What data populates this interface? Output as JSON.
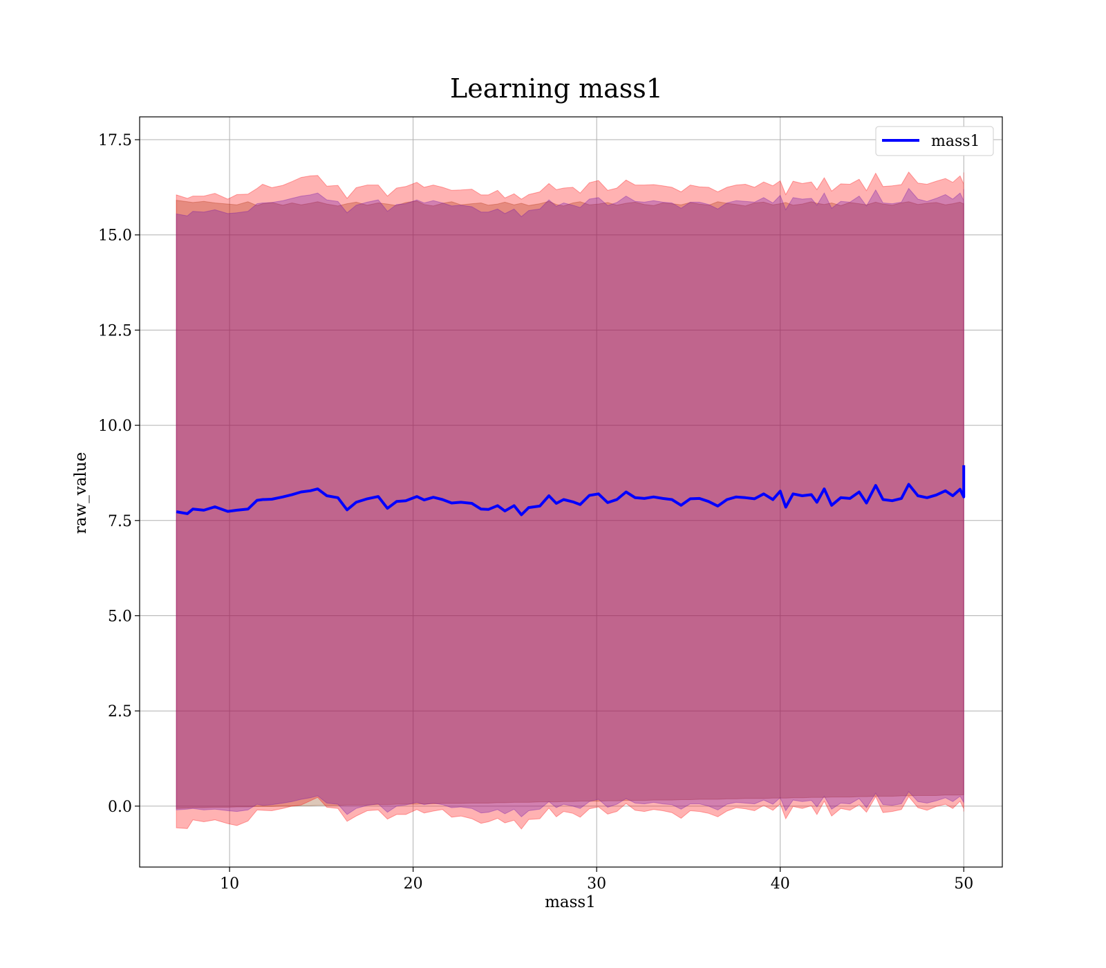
{
  "chart_data": {
    "type": "line",
    "title": "Learning mass1",
    "xlabel": "mass1",
    "ylabel": "raw_value",
    "xlim": [
      5.1,
      52.1
    ],
    "ylim": [
      -1.6,
      18.1
    ],
    "xticks": [
      10,
      20,
      30,
      40,
      50
    ],
    "xtick_labels": [
      "10",
      "20",
      "30",
      "40",
      "50"
    ],
    "yticks": [
      0.0,
      2.5,
      5.0,
      7.5,
      10.0,
      12.5,
      15.0,
      17.5
    ],
    "ytick_labels": [
      "0.0",
      "2.5",
      "5.0",
      "7.5",
      "10.0",
      "12.5",
      "15.0",
      "17.5"
    ],
    "grid": true,
    "legend": {
      "placement": "upper right",
      "entries": [
        "mass1"
      ]
    },
    "series": [
      {
        "name": "mass1",
        "color": "#0000ff",
        "x": [
          7.1,
          7.7,
          8.0,
          8.6,
          9.2,
          9.9,
          10.4,
          11.0,
          11.5,
          11.8,
          12.3,
          12.9,
          13.4,
          13.9,
          14.4,
          14.8,
          15.3,
          15.9,
          16.4,
          16.9,
          17.5,
          18.1,
          18.6,
          19.1,
          19.6,
          20.2,
          20.6,
          21.1,
          21.6,
          22.1,
          22.6,
          23.2,
          23.7,
          24.1,
          24.6,
          25.0,
          25.5,
          25.9,
          26.3,
          26.9,
          27.4,
          27.8,
          28.2,
          28.7,
          29.1,
          29.6,
          30.1,
          30.6,
          31.1,
          31.6,
          32.1,
          32.6,
          33.1,
          33.6,
          34.1,
          34.6,
          35.1,
          35.6,
          36.1,
          36.6,
          37.1,
          37.6,
          38.1,
          38.6,
          39.1,
          39.6,
          40.0,
          40.3,
          40.7,
          41.2,
          41.7,
          42.0,
          42.4,
          42.8,
          43.3,
          43.8,
          44.3,
          44.7,
          45.2,
          45.6,
          46.1,
          46.6,
          47.0,
          47.5,
          48.0,
          48.5,
          49.0,
          49.4,
          49.8,
          50.0,
          50.0
        ],
        "y": [
          7.73,
          7.68,
          7.8,
          7.77,
          7.86,
          7.74,
          7.77,
          7.8,
          8.03,
          8.05,
          8.06,
          8.12,
          8.18,
          8.25,
          8.28,
          8.33,
          8.15,
          8.1,
          7.78,
          7.98,
          8.07,
          8.13,
          7.82,
          8.0,
          8.02,
          8.13,
          8.04,
          8.11,
          8.05,
          7.96,
          7.98,
          7.95,
          7.8,
          7.79,
          7.89,
          7.75,
          7.89,
          7.65,
          7.84,
          7.88,
          8.15,
          7.95,
          8.05,
          7.99,
          7.92,
          8.16,
          8.2,
          7.97,
          8.05,
          8.25,
          8.1,
          8.08,
          8.12,
          8.08,
          8.05,
          7.9,
          8.07,
          8.08,
          8.0,
          7.88,
          8.05,
          8.12,
          8.1,
          8.07,
          8.2,
          8.05,
          8.27,
          7.85,
          8.2,
          8.15,
          8.18,
          7.98,
          8.33,
          7.9,
          8.1,
          8.08,
          8.25,
          7.96,
          8.42,
          8.05,
          8.02,
          8.08,
          8.45,
          8.15,
          8.1,
          8.17,
          8.28,
          8.15,
          8.32,
          8.12,
          8.95
        ]
      },
      {
        "name": "",
        "color": "#8b4513",
        "lower": [
          -0.06,
          -0.05,
          -0.04,
          -0.04,
          -0.03,
          -0.03,
          -0.02,
          -0.02,
          -0.01,
          -0.01,
          -0.01,
          0.0,
          0.0,
          0.01,
          0.01,
          0.02,
          0.02,
          0.02,
          0.03,
          0.03,
          0.03,
          0.04,
          0.04,
          0.05,
          0.05,
          0.05,
          0.06,
          0.06,
          0.07,
          0.07,
          0.07,
          0.08,
          0.08,
          0.08,
          0.09,
          0.09,
          0.1,
          0.1,
          0.1,
          0.11,
          0.11,
          0.11,
          0.12,
          0.12,
          0.13,
          0.13,
          0.13,
          0.14,
          0.14,
          0.15,
          0.15,
          0.15,
          0.16,
          0.16,
          0.16,
          0.17,
          0.17,
          0.18,
          0.18,
          0.18,
          0.19,
          0.19,
          0.2,
          0.2,
          0.2,
          0.21,
          0.21,
          0.21,
          0.22,
          0.22,
          0.23,
          0.23,
          0.23,
          0.24,
          0.24,
          0.24,
          0.25,
          0.25,
          0.26,
          0.26,
          0.26,
          0.27,
          0.27,
          0.28,
          0.28,
          0.28,
          0.29,
          0.29,
          0.29,
          0.3,
          0.3
        ],
        "upper": [
          15.91,
          15.87,
          15.85,
          15.88,
          15.84,
          15.81,
          15.79,
          15.87,
          15.77,
          15.82,
          15.85,
          15.78,
          15.84,
          15.79,
          15.83,
          15.87,
          15.81,
          15.76,
          15.82,
          15.86,
          15.78,
          15.84,
          15.81,
          15.77,
          15.85,
          15.89,
          15.8,
          15.76,
          15.83,
          15.87,
          15.79,
          15.82,
          15.84,
          15.78,
          15.81,
          15.86,
          15.79,
          15.83,
          15.77,
          15.82,
          15.88,
          15.8,
          15.76,
          15.84,
          15.87,
          15.79,
          15.81,
          15.85,
          15.78,
          15.83,
          15.86,
          15.8,
          15.77,
          15.84,
          15.82,
          15.79,
          15.85,
          15.81,
          15.78,
          15.87,
          15.83,
          15.8,
          15.76,
          15.84,
          15.86,
          15.79,
          15.82,
          15.85,
          15.78,
          15.81,
          15.87,
          15.83,
          15.8,
          15.84,
          15.77,
          15.85,
          15.82,
          15.79,
          15.86,
          15.81,
          15.78,
          15.84,
          15.87,
          15.8,
          15.83,
          15.85,
          15.79,
          15.82,
          15.86,
          15.81,
          15.84
        ]
      },
      {
        "name": "",
        "color": "#ff0000",
        "lower": [
          -0.57,
          -0.59,
          -0.36,
          -0.41,
          -0.36,
          -0.46,
          -0.51,
          -0.39,
          -0.1,
          -0.11,
          -0.12,
          -0.06,
          0.0,
          0.03,
          0.14,
          0.23,
          -0.03,
          -0.06,
          -0.4,
          -0.26,
          -0.12,
          -0.1,
          -0.34,
          -0.22,
          -0.22,
          -0.09,
          -0.18,
          -0.13,
          -0.09,
          -0.29,
          -0.26,
          -0.33,
          -0.45,
          -0.41,
          -0.32,
          -0.44,
          -0.37,
          -0.6,
          -0.35,
          -0.33,
          -0.05,
          -0.28,
          -0.14,
          -0.19,
          -0.29,
          -0.07,
          -0.02,
          -0.21,
          -0.14,
          0.07,
          -0.11,
          -0.14,
          -0.09,
          -0.12,
          -0.17,
          -0.32,
          -0.12,
          -0.14,
          -0.19,
          -0.28,
          -0.13,
          -0.04,
          -0.07,
          -0.12,
          0.02,
          -0.11,
          0.06,
          -0.33,
          -0.01,
          -0.06,
          0.01,
          -0.22,
          0.13,
          -0.26,
          -0.06,
          -0.11,
          0.04,
          -0.16,
          0.25,
          -0.17,
          -0.14,
          -0.09,
          0.25,
          -0.04,
          -0.11,
          -0.01,
          0.05,
          -0.06,
          0.13,
          -0.07,
          -0.14
        ],
        "upper": [
          16.05,
          15.96,
          16.02,
          16.02,
          16.09,
          15.94,
          16.06,
          16.07,
          16.22,
          16.33,
          16.24,
          16.3,
          16.4,
          16.51,
          16.55,
          16.56,
          16.28,
          16.3,
          15.96,
          16.24,
          16.31,
          16.31,
          16.02,
          16.23,
          16.27,
          16.38,
          16.25,
          16.31,
          16.25,
          16.17,
          16.18,
          16.2,
          16.05,
          16.05,
          16.17,
          15.97,
          16.08,
          15.94,
          16.06,
          16.13,
          16.35,
          16.19,
          16.23,
          16.25,
          16.1,
          16.37,
          16.43,
          16.17,
          16.23,
          16.44,
          16.31,
          16.31,
          16.32,
          16.29,
          16.25,
          16.13,
          16.31,
          16.26,
          16.25,
          16.13,
          16.25,
          16.31,
          16.33,
          16.25,
          16.39,
          16.29,
          16.42,
          16.06,
          16.41,
          16.35,
          16.39,
          16.19,
          16.5,
          16.15,
          16.34,
          16.33,
          16.46,
          16.16,
          16.62,
          16.27,
          16.29,
          16.32,
          16.65,
          16.36,
          16.33,
          16.41,
          16.48,
          16.38,
          16.55,
          16.33,
          16.64
        ]
      },
      {
        "name": "",
        "color": "#6a0dad",
        "lower": [
          -0.1,
          -0.08,
          -0.06,
          -0.1,
          -0.08,
          -0.12,
          -0.14,
          -0.1,
          0.05,
          0.02,
          0.04,
          0.08,
          0.12,
          0.18,
          0.22,
          0.27,
          0.08,
          0.05,
          -0.22,
          -0.06,
          0.02,
          0.06,
          -0.16,
          0.0,
          0.03,
          0.1,
          0.04,
          0.08,
          0.04,
          -0.04,
          -0.02,
          -0.06,
          -0.18,
          -0.16,
          -0.09,
          -0.2,
          -0.08,
          -0.28,
          -0.12,
          -0.08,
          0.12,
          -0.04,
          0.05,
          0.0,
          -0.06,
          0.12,
          0.18,
          -0.03,
          0.05,
          0.2,
          0.08,
          0.06,
          0.1,
          0.06,
          0.04,
          -0.08,
          0.06,
          0.06,
          0.0,
          -0.1,
          0.05,
          0.1,
          0.08,
          0.06,
          0.16,
          0.05,
          0.22,
          -0.12,
          0.16,
          0.12,
          0.15,
          -0.02,
          0.26,
          -0.08,
          0.08,
          0.06,
          0.2,
          -0.04,
          0.34,
          0.04,
          0.02,
          0.06,
          0.38,
          0.12,
          0.08,
          0.14,
          0.22,
          0.12,
          0.26,
          0.1,
          0.1
        ],
        "upper": [
          15.55,
          15.5,
          15.62,
          15.6,
          15.66,
          15.56,
          15.58,
          15.62,
          15.82,
          15.84,
          15.85,
          15.9,
          15.96,
          16.02,
          16.05,
          16.1,
          15.92,
          15.88,
          15.58,
          15.78,
          15.86,
          15.92,
          15.62,
          15.8,
          15.82,
          15.92,
          15.84,
          15.9,
          15.84,
          15.76,
          15.78,
          15.74,
          15.6,
          15.6,
          15.68,
          15.56,
          15.68,
          15.48,
          15.64,
          15.68,
          15.92,
          15.75,
          15.84,
          15.78,
          15.72,
          15.94,
          15.98,
          15.77,
          15.85,
          16.02,
          15.88,
          15.86,
          15.9,
          15.86,
          15.84,
          15.7,
          15.86,
          15.86,
          15.8,
          15.68,
          15.84,
          15.9,
          15.88,
          15.86,
          15.98,
          15.84,
          16.04,
          15.66,
          15.98,
          15.94,
          15.96,
          15.78,
          16.1,
          15.7,
          15.88,
          15.86,
          16.02,
          15.76,
          16.18,
          15.84,
          15.82,
          15.86,
          16.22,
          15.94,
          15.88,
          15.96,
          16.06,
          15.94,
          16.1,
          15.9,
          16.2
        ]
      }
    ]
  }
}
